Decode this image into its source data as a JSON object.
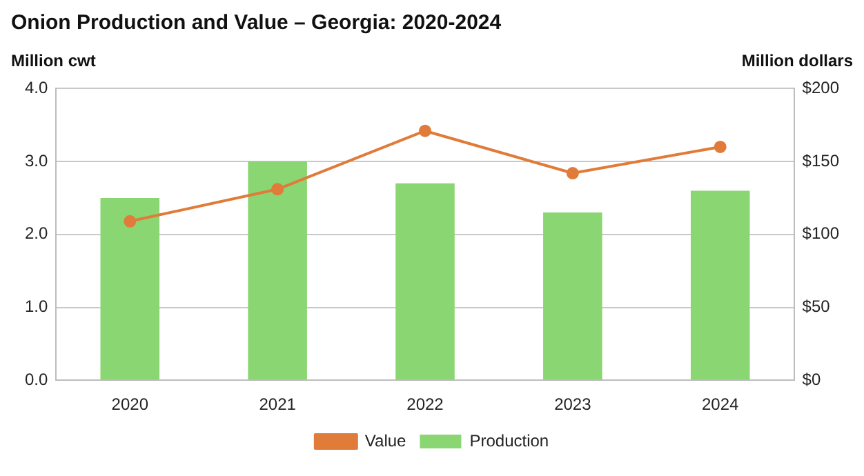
{
  "chart_data": {
    "type": "bar",
    "title": "Onion Production and Value – Georgia: 2020-2024",
    "ylabel": "Million cwt",
    "y2label": "Million dollars",
    "categories": [
      "2020",
      "2021",
      "2022",
      "2023",
      "2024"
    ],
    "series": [
      {
        "name": "Production",
        "color": "#8ad672",
        "values": [
          2.5,
          3.0,
          2.7,
          2.3,
          2.6
        ]
      },
      {
        "name": "Value",
        "type": "line",
        "axis": "y2",
        "color": "#e07b39",
        "marker": "circle",
        "values": [
          109,
          131,
          171,
          142,
          160
        ]
      }
    ],
    "ylim": [
      0,
      4
    ],
    "yticks": [
      {
        "value": 0,
        "label": "0.0"
      },
      {
        "value": 1,
        "label": "1.0"
      },
      {
        "value": 2,
        "label": "2.0"
      },
      {
        "value": 3,
        "label": "3.0"
      },
      {
        "value": 4,
        "label": "4.0"
      }
    ],
    "y2lim": [
      0,
      200
    ],
    "y2ticks": [
      {
        "value": 0,
        "label": "$0"
      },
      {
        "value": 50,
        "label": "$50"
      },
      {
        "value": 100,
        "label": "$100"
      },
      {
        "value": 150,
        "label": "$150"
      },
      {
        "value": 200,
        "label": "$200"
      }
    ],
    "grid": "y",
    "legend": "bottom"
  }
}
